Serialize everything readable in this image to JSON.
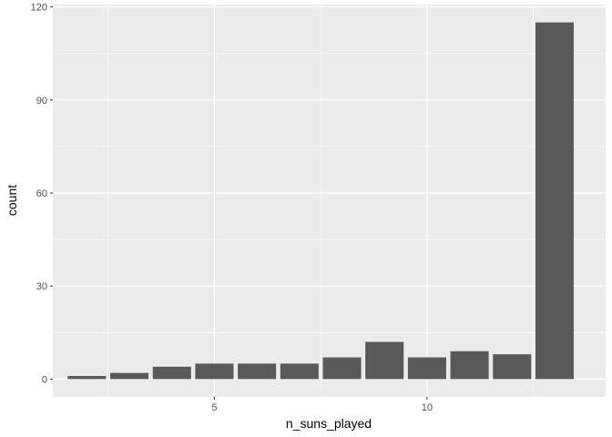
{
  "chart_data": {
    "type": "bar",
    "xlabel": "n_suns_played",
    "ylabel": "count",
    "x": [
      2,
      3,
      4,
      5,
      6,
      7,
      8,
      9,
      10,
      11,
      12,
      13
    ],
    "values": [
      1,
      2,
      4,
      5,
      5,
      5,
      7,
      12,
      7,
      9,
      8,
      115
    ],
    "xlim": [
      1.2,
      14.2
    ],
    "ylim": [
      -5.75,
      120.75
    ],
    "x_ticks": [
      5,
      10
    ],
    "x_tick_labels": [
      "5",
      "10"
    ],
    "y_ticks": [
      0,
      30,
      60,
      90,
      120
    ],
    "y_tick_labels": [
      "0",
      "30",
      "60",
      "90",
      "120"
    ],
    "grid": true,
    "colors": {
      "panel_background": "#ebebeb",
      "grid_major": "#ffffff",
      "bar_fill": "#595959",
      "tick_color": "#333333"
    }
  }
}
